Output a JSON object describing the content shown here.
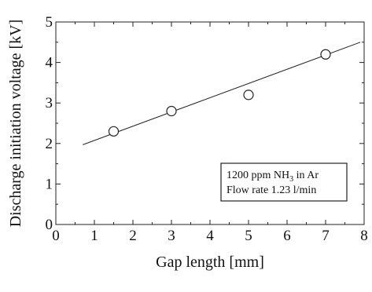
{
  "chart_data": {
    "type": "scatter",
    "xlabel": "Gap length [mm]",
    "ylabel": "Discharge initiation voltage [kV]",
    "xlim": [
      0,
      8
    ],
    "ylim": [
      0,
      5
    ],
    "x_ticks": [
      0,
      1,
      2,
      3,
      4,
      5,
      6,
      7,
      8
    ],
    "y_ticks": [
      0,
      1,
      2,
      3,
      4,
      5
    ],
    "grid": false,
    "series": [
      {
        "marker": "open-circle",
        "x": [
          1.5,
          3,
          5,
          7
        ],
        "y": [
          2.3,
          2.8,
          3.2,
          4.2
        ]
      }
    ],
    "fit_line": {
      "x": [
        0.7,
        7.9
      ],
      "y": [
        1.97,
        4.5
      ]
    },
    "legend": {
      "line1_prefix": "1200 ppm NH",
      "line1_sub": "3",
      "line1_suffix": " in Ar",
      "line2": "Flow rate 1.23 l/min",
      "placement": "lower-right"
    }
  }
}
